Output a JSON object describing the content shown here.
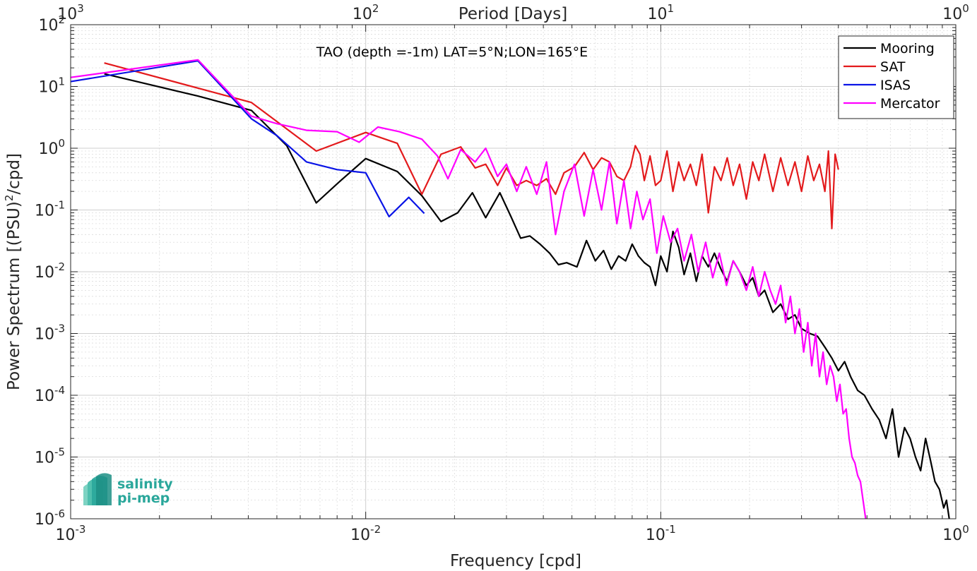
{
  "chart_data": {
    "type": "line",
    "title": "TAO (depth =-1m) LAT=5°N;LON=165°E",
    "xlabel": "Frequency [cpd]",
    "ylabel": "Power Spectrum [(PSU)²/cpd]",
    "ylabel_parts": {
      "pre": "Power Spectrum [(PSU)",
      "sup": "2",
      "post": "/cpd]"
    },
    "top_xlabel": "Period [Days]",
    "xscale": "log",
    "yscale": "log",
    "xlim": [
      0.001,
      1
    ],
    "ylim": [
      1e-06,
      100
    ],
    "grid": true,
    "legend_position": "top-right",
    "x_ticks": [
      {
        "value": 0.001,
        "base": "10",
        "exp": "-3"
      },
      {
        "value": 0.01,
        "base": "10",
        "exp": "-2"
      },
      {
        "value": 0.1,
        "base": "10",
        "exp": "-1"
      },
      {
        "value": 1,
        "base": "10",
        "exp": "0"
      }
    ],
    "top_x_ticks": [
      {
        "value": 0.001,
        "base": "10",
        "exp": "3"
      },
      {
        "value": 0.01,
        "base": "10",
        "exp": "2"
      },
      {
        "value": 0.1,
        "base": "10",
        "exp": "1"
      },
      {
        "value": 1,
        "base": "10",
        "exp": "0"
      }
    ],
    "y_ticks": [
      {
        "value": 100,
        "base": "10",
        "exp": "2"
      },
      {
        "value": 10,
        "base": "10",
        "exp": "1"
      },
      {
        "value": 1,
        "base": "10",
        "exp": "0"
      },
      {
        "value": 0.1,
        "base": "10",
        "exp": "-1"
      },
      {
        "value": 0.01,
        "base": "10",
        "exp": "-2"
      },
      {
        "value": 0.001,
        "base": "10",
        "exp": "-3"
      },
      {
        "value": 0.0001,
        "base": "10",
        "exp": "-4"
      },
      {
        "value": 1e-05,
        "base": "10",
        "exp": "-5"
      },
      {
        "value": 1e-06,
        "base": "10",
        "exp": "-6"
      }
    ],
    "series": [
      {
        "name": "Mooring",
        "color": "#000000",
        "x": [
          0.0013,
          0.0027,
          0.0041,
          0.0054,
          0.0068,
          0.0081,
          0.01,
          0.0128,
          0.0155,
          0.018,
          0.0205,
          0.023,
          0.0255,
          0.0285,
          0.031,
          0.0335,
          0.036,
          0.039,
          0.042,
          0.045,
          0.048,
          0.052,
          0.056,
          0.06,
          0.064,
          0.068,
          0.072,
          0.076,
          0.08,
          0.084,
          0.088,
          0.092,
          0.096,
          0.1,
          0.105,
          0.11,
          0.115,
          0.12,
          0.126,
          0.132,
          0.138,
          0.145,
          0.152,
          0.16,
          0.168,
          0.176,
          0.185,
          0.195,
          0.205,
          0.215,
          0.225,
          0.24,
          0.255,
          0.27,
          0.285,
          0.3,
          0.32,
          0.34,
          0.36,
          0.38,
          0.4,
          0.42,
          0.44,
          0.465,
          0.49,
          0.52,
          0.55,
          0.58,
          0.61,
          0.64,
          0.67,
          0.7,
          0.73,
          0.76,
          0.79,
          0.82,
          0.85,
          0.88,
          0.91,
          0.93,
          0.95
        ],
        "y": [
          16,
          7,
          4.1,
          1.1,
          0.13,
          0.28,
          0.68,
          0.42,
          0.17,
          0.065,
          0.09,
          0.19,
          0.075,
          0.19,
          0.08,
          0.035,
          0.038,
          0.028,
          0.02,
          0.013,
          0.014,
          0.012,
          0.032,
          0.015,
          0.022,
          0.011,
          0.018,
          0.015,
          0.028,
          0.018,
          0.014,
          0.012,
          0.006,
          0.018,
          0.01,
          0.045,
          0.025,
          0.009,
          0.02,
          0.007,
          0.018,
          0.012,
          0.02,
          0.011,
          0.007,
          0.015,
          0.01,
          0.006,
          0.008,
          0.004,
          0.005,
          0.0022,
          0.003,
          0.0017,
          0.002,
          0.0012,
          0.001,
          0.0009,
          0.0006,
          0.0004,
          0.00025,
          0.00035,
          0.0002,
          0.00012,
          0.0001,
          6e-05,
          4e-05,
          2e-05,
          6e-05,
          1e-05,
          3e-05,
          2e-05,
          1e-05,
          6e-06,
          2e-05,
          9e-06,
          4e-06,
          3e-06,
          1.5e-06,
          2e-06,
          1e-06
        ]
      },
      {
        "name": "SAT",
        "color": "#e31a1c",
        "x": [
          0.0013,
          0.0041,
          0.0068,
          0.01,
          0.0128,
          0.0155,
          0.018,
          0.021,
          0.0235,
          0.0255,
          0.028,
          0.03,
          0.0325,
          0.035,
          0.038,
          0.041,
          0.044,
          0.047,
          0.051,
          0.055,
          0.059,
          0.063,
          0.067,
          0.071,
          0.075,
          0.079,
          0.082,
          0.085,
          0.088,
          0.092,
          0.096,
          0.1,
          0.105,
          0.11,
          0.115,
          0.12,
          0.126,
          0.132,
          0.138,
          0.145,
          0.152,
          0.16,
          0.168,
          0.176,
          0.185,
          0.195,
          0.205,
          0.215,
          0.225,
          0.24,
          0.255,
          0.27,
          0.285,
          0.3,
          0.315,
          0.33,
          0.345,
          0.36,
          0.37,
          0.38,
          0.39,
          0.4
        ],
        "y": [
          24,
          5.5,
          0.9,
          1.8,
          1.2,
          0.18,
          0.8,
          1.05,
          0.48,
          0.55,
          0.25,
          0.48,
          0.25,
          0.3,
          0.25,
          0.32,
          0.18,
          0.4,
          0.5,
          0.85,
          0.45,
          0.7,
          0.6,
          0.35,
          0.3,
          0.5,
          1.1,
          0.8,
          0.3,
          0.75,
          0.25,
          0.3,
          0.9,
          0.2,
          0.6,
          0.3,
          0.55,
          0.25,
          0.8,
          0.09,
          0.5,
          0.3,
          0.7,
          0.25,
          0.55,
          0.15,
          0.6,
          0.3,
          0.8,
          0.2,
          0.7,
          0.25,
          0.6,
          0.2,
          0.75,
          0.3,
          0.55,
          0.2,
          0.9,
          0.05,
          0.8,
          0.45
        ]
      },
      {
        "name": "ISAS",
        "color": "#0a14e6",
        "x": [
          0.001,
          0.0027,
          0.0041,
          0.005,
          0.0063,
          0.008,
          0.01,
          0.012,
          0.014,
          0.0158
        ],
        "y": [
          12,
          26,
          3.0,
          1.6,
          0.6,
          0.45,
          0.4,
          0.078,
          0.16,
          0.088
        ]
      },
      {
        "name": "Mercator",
        "color": "#ff00ff",
        "x": [
          0.001,
          0.0027,
          0.0041,
          0.005,
          0.0063,
          0.008,
          0.0095,
          0.011,
          0.013,
          0.0155,
          0.0175,
          0.019,
          0.021,
          0.0235,
          0.0255,
          0.028,
          0.03,
          0.0325,
          0.035,
          0.038,
          0.041,
          0.044,
          0.047,
          0.051,
          0.055,
          0.059,
          0.063,
          0.067,
          0.071,
          0.075,
          0.079,
          0.083,
          0.087,
          0.092,
          0.097,
          0.102,
          0.108,
          0.114,
          0.12,
          0.127,
          0.134,
          0.142,
          0.15,
          0.158,
          0.167,
          0.176,
          0.185,
          0.195,
          0.205,
          0.215,
          0.225,
          0.235,
          0.245,
          0.255,
          0.265,
          0.275,
          0.285,
          0.295,
          0.305,
          0.315,
          0.325,
          0.335,
          0.345,
          0.355,
          0.365,
          0.375,
          0.385,
          0.395,
          0.405,
          0.415,
          0.425,
          0.435,
          0.445,
          0.455,
          0.465,
          0.475,
          0.485,
          0.495
        ],
        "y": [
          14,
          27,
          3.3,
          2.5,
          1.95,
          1.85,
          1.25,
          2.2,
          1.85,
          1.4,
          0.75,
          0.32,
          0.95,
          0.6,
          1.0,
          0.35,
          0.55,
          0.2,
          0.5,
          0.18,
          0.6,
          0.04,
          0.2,
          0.55,
          0.08,
          0.45,
          0.1,
          0.6,
          0.06,
          0.3,
          0.05,
          0.2,
          0.07,
          0.15,
          0.02,
          0.08,
          0.03,
          0.05,
          0.015,
          0.04,
          0.01,
          0.03,
          0.008,
          0.02,
          0.006,
          0.015,
          0.01,
          0.005,
          0.012,
          0.004,
          0.01,
          0.005,
          0.003,
          0.006,
          0.0015,
          0.004,
          0.001,
          0.0025,
          0.0005,
          0.0015,
          0.0003,
          0.001,
          0.0002,
          0.0005,
          0.00015,
          0.0003,
          0.0002,
          8e-05,
          0.00015,
          5e-05,
          6e-05,
          2e-05,
          1e-05,
          8e-06,
          5e-06,
          4e-06,
          2e-06,
          1e-06
        ]
      }
    ]
  },
  "logo": {
    "line1": "salinity",
    "line2": "pi-mep"
  }
}
